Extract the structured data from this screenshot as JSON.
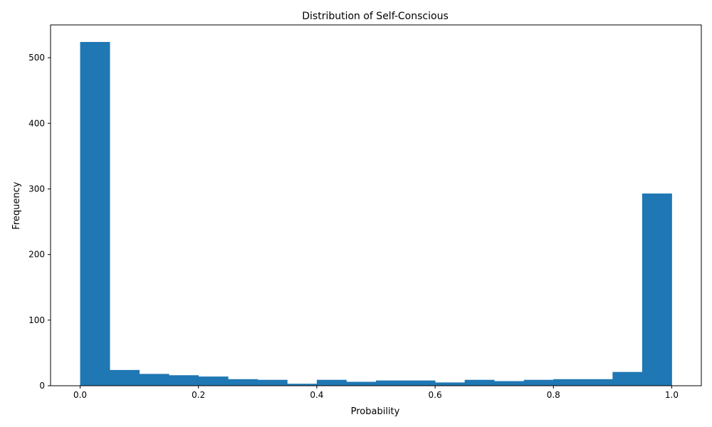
{
  "chart_data": {
    "type": "bar",
    "title": "Distribution of Self-Conscious",
    "xlabel": "Probability",
    "ylabel": "Frequency",
    "bar_color": "#1f77b4",
    "grid": false,
    "xlim": [
      -0.05,
      1.05
    ],
    "ylim": [
      0,
      550
    ],
    "xticks": [
      0.0,
      0.2,
      0.4,
      0.6,
      0.8,
      1.0
    ],
    "xtick_labels": [
      "0.0",
      "0.2",
      "0.4",
      "0.6",
      "0.8",
      "1.0"
    ],
    "yticks": [
      0,
      100,
      200,
      300,
      400,
      500
    ],
    "ytick_labels": [
      "0",
      "100",
      "200",
      "300",
      "400",
      "500"
    ],
    "bin_edges": [
      0.0,
      0.05,
      0.1,
      0.15,
      0.2,
      0.25,
      0.3,
      0.35,
      0.4,
      0.45,
      0.5,
      0.55,
      0.6,
      0.65,
      0.7,
      0.75,
      0.8,
      0.85,
      0.9,
      0.95,
      1.0
    ],
    "values": [
      524,
      24,
      18,
      16,
      14,
      10,
      9,
      3,
      9,
      6,
      8,
      8,
      5,
      9,
      7,
      9,
      10,
      10,
      21,
      293
    ]
  }
}
